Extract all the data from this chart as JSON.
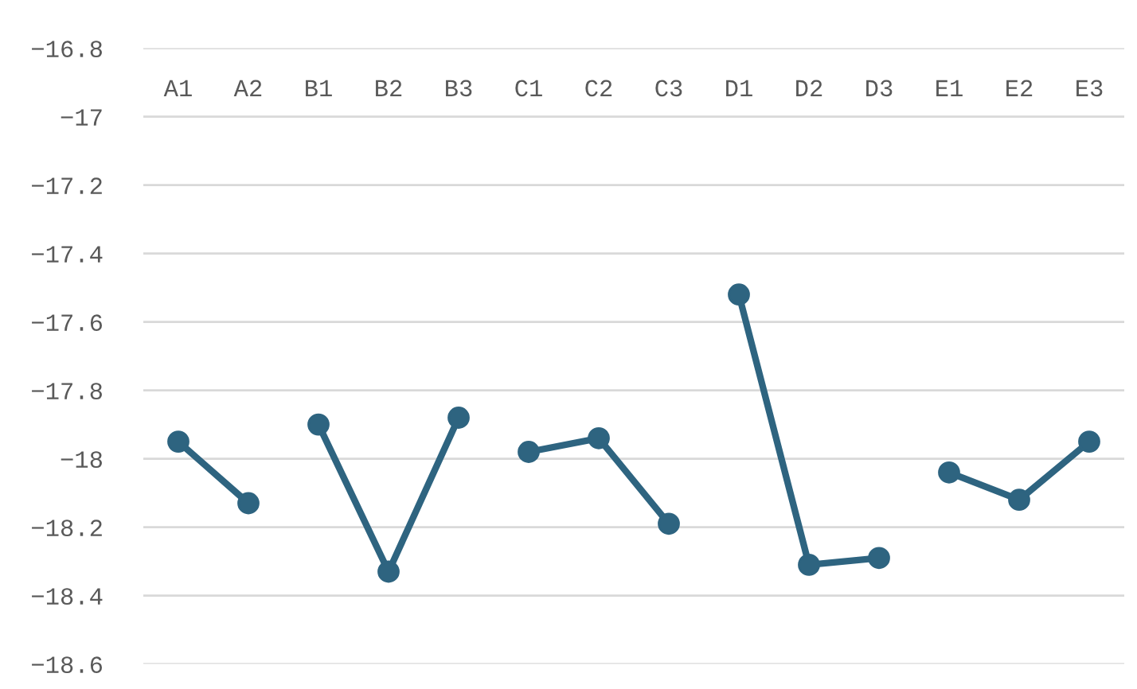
{
  "chart_data": {
    "type": "line",
    "categories": [
      "A1",
      "A2",
      "B1",
      "B2",
      "B3",
      "C1",
      "C2",
      "C3",
      "D1",
      "D2",
      "D3",
      "E1",
      "E2",
      "E3"
    ],
    "series": [
      {
        "color": "#2e6480",
        "values": [
          -17.95,
          -18.13,
          null,
          null,
          null,
          null,
          null,
          null,
          null,
          null,
          null,
          null,
          null,
          null
        ]
      },
      {
        "color": "#2e6480",
        "values": [
          null,
          null,
          -17.9,
          -18.33,
          -17.88,
          null,
          null,
          null,
          null,
          null,
          null,
          null,
          null,
          null
        ]
      },
      {
        "color": "#2e6480",
        "values": [
          null,
          null,
          null,
          null,
          null,
          -17.98,
          -17.94,
          -18.19,
          null,
          null,
          null,
          null,
          null,
          null
        ]
      },
      {
        "color": "#2e6480",
        "values": [
          null,
          null,
          null,
          null,
          null,
          null,
          null,
          null,
          -17.52,
          -18.31,
          -18.29,
          null,
          null,
          null
        ]
      },
      {
        "color": "#2e6480",
        "values": [
          null,
          null,
          null,
          null,
          null,
          null,
          null,
          null,
          null,
          null,
          null,
          -18.04,
          -18.12,
          -17.95
        ]
      }
    ],
    "ylim": [
      -18.6,
      -16.8
    ],
    "yticks": [
      -18.6,
      -18.4,
      -18.2,
      -18,
      -17.8,
      -17.6,
      -17.4,
      -17.2,
      -17,
      -16.8
    ],
    "grid": "y",
    "marker": "circle",
    "line_style": "solid",
    "legend": false
  }
}
